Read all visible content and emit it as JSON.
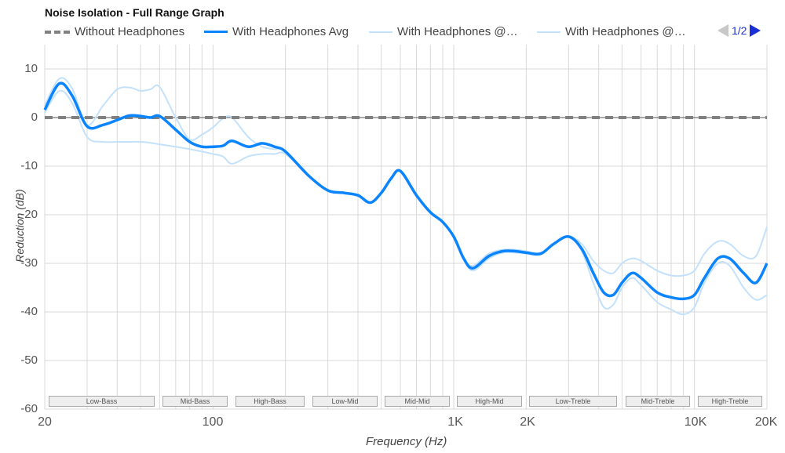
{
  "header": {
    "title": "Noise Isolation - Full Range Graph"
  },
  "legend": {
    "items": [
      {
        "label": "Without Headphones",
        "style": "dashed",
        "color": "#808080"
      },
      {
        "label": "With Headphones Avg",
        "style": "solid",
        "color": "#0a84ff"
      },
      {
        "label": "With Headphones @…",
        "style": "solid-light",
        "color": "#c4e1fb"
      },
      {
        "label": "With Headphones @…",
        "style": "solid-light",
        "color": "#c4e1fb"
      }
    ],
    "pager": {
      "label": "1/2",
      "prev_icon": "triangle-left",
      "next_icon": "triangle-right"
    }
  },
  "axes": {
    "ylabel": "Reduction (dB)",
    "xlabel": "Frequency (Hz)",
    "yticks": [
      "10",
      "0",
      "-10",
      "-20",
      "-30",
      "-40",
      "-50",
      "-60"
    ],
    "xticks": [
      "20",
      "100",
      "1K",
      "2K",
      "10K",
      "20K"
    ]
  },
  "bands": [
    {
      "label": "Low-Bass"
    },
    {
      "label": "Mid-Bass"
    },
    {
      "label": "High-Bass"
    },
    {
      "label": "Low-Mid"
    },
    {
      "label": "Mid-Mid"
    },
    {
      "label": "High-Mid"
    },
    {
      "label": "Low-Treble"
    },
    {
      "label": "Mid-Treble"
    },
    {
      "label": "High-Treble"
    }
  ],
  "chart_data": {
    "type": "line",
    "title": "Noise Isolation - Full Range Graph",
    "xlabel": "Frequency (Hz)",
    "ylabel": "Reduction (dB)",
    "xscale": "log",
    "xlim": [
      20,
      20000
    ],
    "ylim": [
      -60,
      15
    ],
    "xtick_labels": [
      "20",
      "100",
      "1K",
      "2K",
      "10K",
      "20K"
    ],
    "ytick_labels": [
      10,
      0,
      -10,
      -20,
      -30,
      -40,
      -50,
      -60
    ],
    "grid": true,
    "legend_position": "top",
    "band_labels": [
      "Low-Bass",
      "Mid-Bass",
      "High-Bass",
      "Low-Mid",
      "Mid-Mid",
      "High-Mid",
      "Low-Treble",
      "Mid-Treble",
      "High-Treble"
    ],
    "x": [
      20,
      23,
      26,
      30,
      35,
      40,
      45,
      50,
      55,
      60,
      70,
      80,
      90,
      100,
      110,
      120,
      140,
      160,
      180,
      200,
      250,
      300,
      350,
      400,
      450,
      500,
      550,
      600,
      700,
      800,
      900,
      1000,
      1100,
      1200,
      1400,
      1600,
      1800,
      2000,
      2300,
      2600,
      3000,
      3400,
      3800,
      4200,
      4600,
      5000,
      5500,
      6000,
      7000,
      8000,
      9000,
      10000,
      11000,
      12500,
      14000,
      16000,
      18000,
      20000
    ],
    "series": [
      {
        "name": "Without Headphones",
        "values": [
          0,
          0,
          0,
          0,
          0,
          0,
          0,
          0,
          0,
          0,
          0,
          0,
          0,
          0,
          0,
          0,
          0,
          0,
          0,
          0,
          0,
          0,
          0,
          0,
          0,
          0,
          0,
          0,
          0,
          0,
          0,
          0,
          0,
          0,
          0,
          0,
          0,
          0,
          0,
          0,
          0,
          0,
          0,
          0,
          0,
          0,
          0,
          0,
          0,
          0,
          0,
          0,
          0,
          0,
          0,
          0,
          0,
          0
        ]
      },
      {
        "name": "With Headphones Avg",
        "values": [
          1.6,
          7,
          4.5,
          -1.8,
          -1.5,
          -0.5,
          0.4,
          0.3,
          0,
          0.3,
          -2.5,
          -5,
          -6,
          -6,
          -5.8,
          -4.8,
          -6,
          -5.3,
          -6,
          -7,
          -12,
          -15,
          -15.5,
          -16,
          -17.5,
          -15.5,
          -12.5,
          -11,
          -16,
          -19.5,
          -21.5,
          -24.5,
          -29,
          -31,
          -28.5,
          -27.5,
          -27.5,
          -27.8,
          -28,
          -26,
          -24.5,
          -27,
          -32,
          -36,
          -36.5,
          -34,
          -32,
          -33,
          -36,
          -37,
          -37.3,
          -36.5,
          -33,
          -29,
          -29,
          -32,
          -34,
          -30
        ]
      },
      {
        "name": "With Headphones @ (upper)",
        "values": [
          2.5,
          8,
          6,
          -1.5,
          2.5,
          5.8,
          6.2,
          5.5,
          5.8,
          6.3,
          0,
          -4.5,
          -3.5,
          -2,
          -0.2,
          0,
          -4,
          -6,
          -6.5,
          -7,
          -12,
          -15,
          -15.5,
          -16,
          -17.5,
          -15.5,
          -12.5,
          -11,
          -16,
          -19.5,
          -21.5,
          -24.5,
          -29,
          -30.5,
          -28,
          -27.2,
          -27.2,
          -27.5,
          -28,
          -26,
          -24.5,
          -26,
          -29.5,
          -31.5,
          -32,
          -30,
          -29,
          -29.5,
          -31.5,
          -32.5,
          -32.5,
          -31.5,
          -28,
          -25.5,
          -26,
          -28.5,
          -28.5,
          -22.5
        ]
      },
      {
        "name": "With Headphones @ (lower)",
        "values": [
          1,
          5.5,
          3,
          -4,
          -5,
          -5,
          -5,
          -5,
          -5.2,
          -5.5,
          -6,
          -6.5,
          -7,
          -7.5,
          -8,
          -9.5,
          -8,
          -7.5,
          -7.5,
          -7.5,
          -12,
          -15,
          -15.5,
          -16,
          -17.5,
          -15.5,
          -12.5,
          -11,
          -16,
          -19.5,
          -21.5,
          -24.5,
          -29,
          -31.5,
          -29,
          -27.8,
          -27.8,
          -28,
          -28.2,
          -26,
          -24.5,
          -27.5,
          -34,
          -39,
          -38.5,
          -35,
          -33,
          -34.5,
          -38,
          -39.5,
          -40.5,
          -39,
          -34,
          -30,
          -30.5,
          -35,
          -37.5,
          -36.5
        ]
      }
    ]
  }
}
